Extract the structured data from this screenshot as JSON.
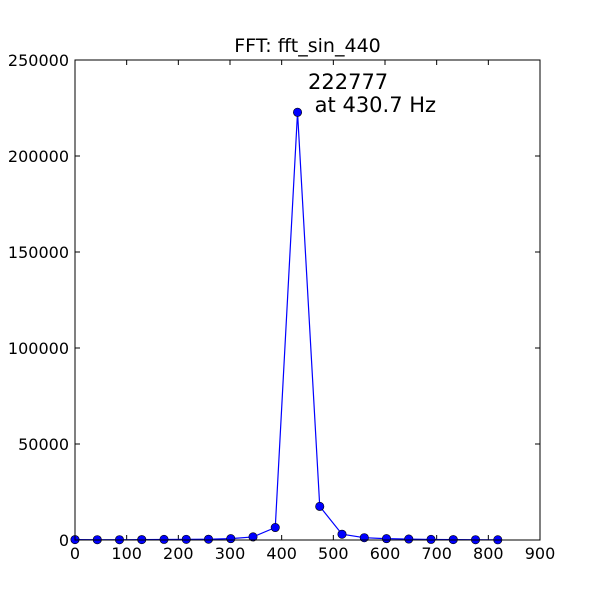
{
  "chart_data": {
    "type": "line",
    "title": "FFT: fft_sin_440",
    "xlabel": "",
    "ylabel": "",
    "xlim": [
      0,
      900
    ],
    "ylim": [
      0,
      250000
    ],
    "x_ticks": [
      0,
      100,
      200,
      300,
      400,
      500,
      600,
      700,
      800,
      900
    ],
    "y_ticks": [
      0,
      50000,
      100000,
      150000,
      200000,
      250000
    ],
    "grid": false,
    "series": [
      {
        "color": "#0000ff",
        "marker": "circle",
        "x": [
          0,
          43.1,
          86.1,
          129.2,
          172.3,
          215.3,
          258.4,
          301.5,
          344.5,
          387.6,
          430.7,
          473.7,
          516.8,
          559.9,
          602.9,
          646.0,
          689.1,
          732.1,
          775.2,
          818.3
        ],
        "y": [
          200,
          150,
          150,
          200,
          300,
          350,
          400,
          700,
          1600,
          6500,
          222777,
          17500,
          3000,
          1200,
          700,
          500,
          300,
          200,
          150,
          100
        ]
      }
    ],
    "annotation": {
      "line1": "222777",
      "line2": " at 430.7 Hz",
      "x": 430.7,
      "y": 222777
    }
  }
}
